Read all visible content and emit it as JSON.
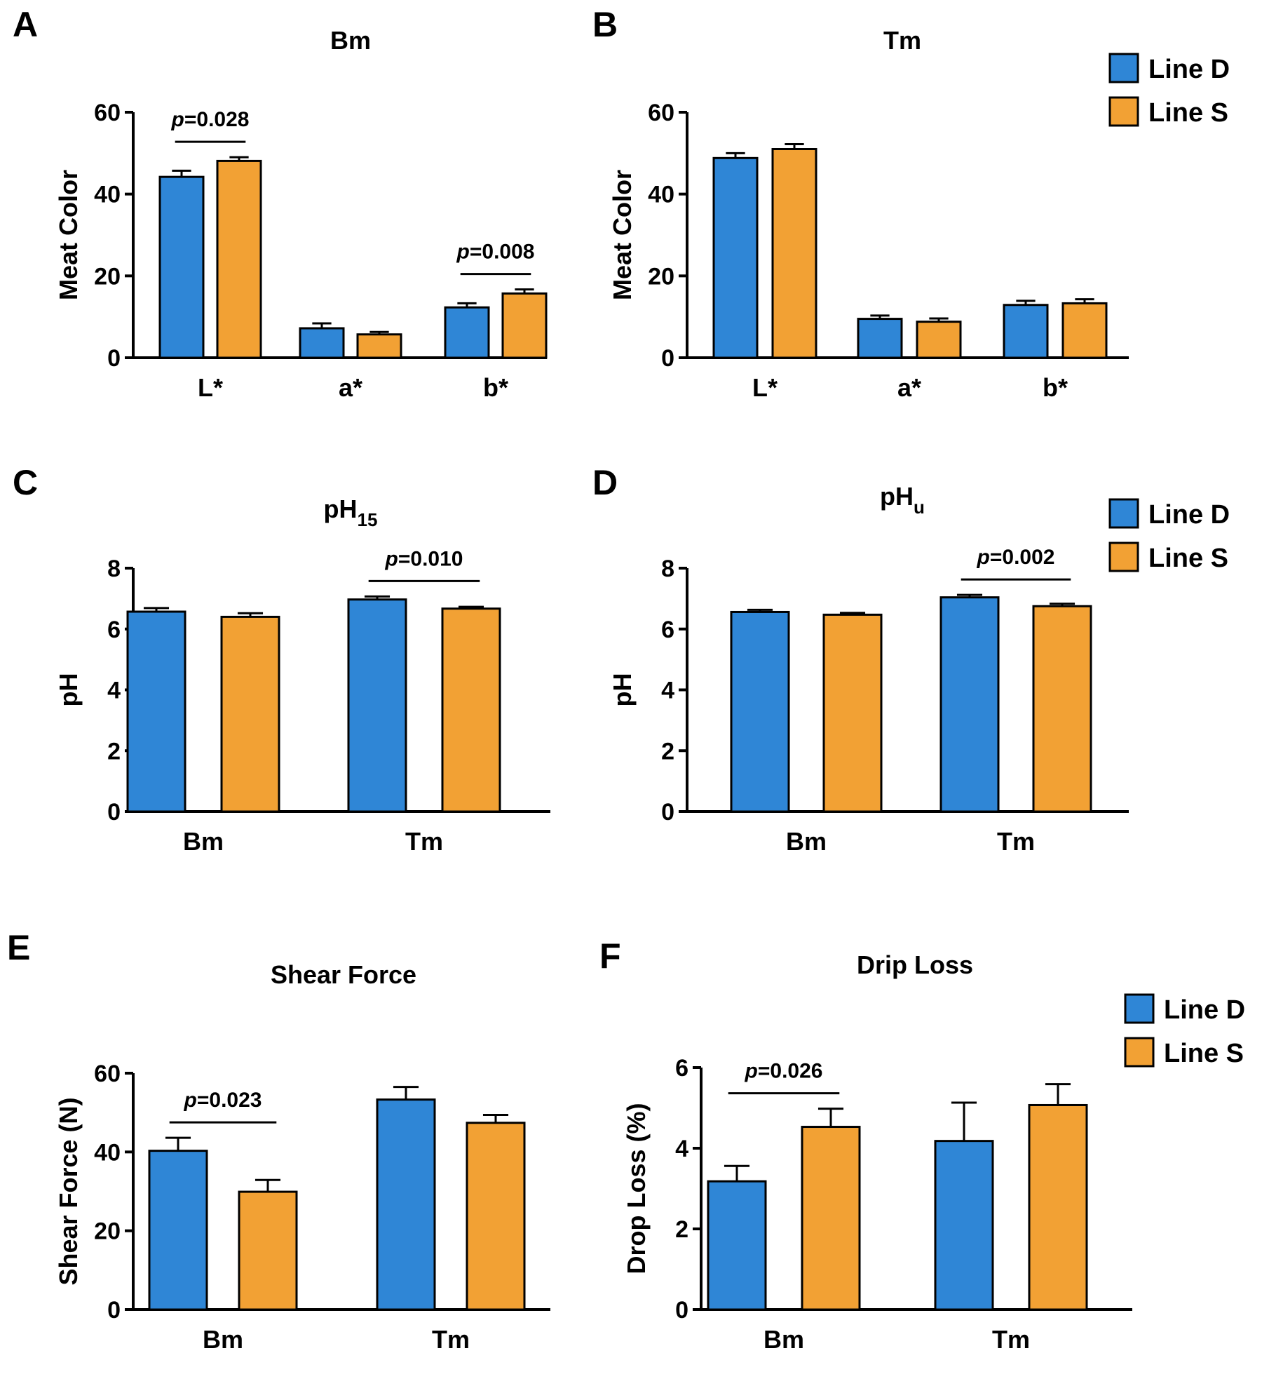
{
  "colors": {
    "line_d": "#2f86d6",
    "line_s": "#f2a134"
  },
  "legend": [
    {
      "label": "Line D",
      "color": "#2f86d6"
    },
    {
      "label": "Line S",
      "color": "#f2a134"
    }
  ],
  "chart_data": [
    {
      "panel": "A",
      "type": "bar",
      "title": "Bm",
      "ylabel": "Meat Color",
      "xlabel": "",
      "ylim": [
        0,
        60
      ],
      "yticks": [
        "0",
        "20",
        "40",
        "60"
      ],
      "categories": [
        "L*",
        "a*",
        "b*"
      ],
      "series": [
        {
          "name": "Line D",
          "values": [
            44.2,
            7.2,
            12.3
          ],
          "errors": [
            1.5,
            1.2,
            1.0
          ]
        },
        {
          "name": "Line S",
          "values": [
            48.1,
            5.7,
            15.7
          ],
          "errors": [
            0.9,
            0.6,
            1.0
          ]
        }
      ],
      "annotations": [
        {
          "p_prefix": "p",
          "p_value": "=0.028",
          "category_index": 0
        },
        {
          "p_prefix": "p",
          "p_value": "=0.008",
          "category_index": 2
        }
      ],
      "legend": false
    },
    {
      "panel": "B",
      "type": "bar",
      "title": "Tm",
      "ylabel": "Meat Color",
      "xlabel": "",
      "ylim": [
        0,
        60
      ],
      "yticks": [
        "0",
        "20",
        "40",
        "60"
      ],
      "categories": [
        "L*",
        "a*",
        "b*"
      ],
      "series": [
        {
          "name": "Line D",
          "values": [
            48.8,
            9.5,
            12.9
          ],
          "errors": [
            1.2,
            0.8,
            1.0
          ]
        },
        {
          "name": "Line S",
          "values": [
            51.0,
            8.8,
            13.3
          ],
          "errors": [
            1.2,
            0.8,
            1.0
          ]
        }
      ],
      "annotations": [],
      "legend": true
    },
    {
      "panel": "C",
      "type": "bar",
      "title": "pH",
      "title_sub": "15",
      "ylabel": "pH",
      "xlabel": "",
      "ylim": [
        0,
        8
      ],
      "yticks": [
        "0",
        "2",
        "4",
        "6",
        "8"
      ],
      "categories": [
        "Bm",
        "Tm"
      ],
      "series": [
        {
          "name": "Line D",
          "values": [
            6.57,
            6.97
          ],
          "errors": [
            0.12,
            0.1
          ]
        },
        {
          "name": "Line S",
          "values": [
            6.4,
            6.67
          ],
          "errors": [
            0.12,
            0.06
          ]
        }
      ],
      "annotations": [
        {
          "p_prefix": "p",
          "p_value": "=0.010",
          "category_index": 1
        }
      ],
      "legend": false
    },
    {
      "panel": "D",
      "type": "bar",
      "title": "pH",
      "title_sub": "u",
      "ylabel": "pH",
      "xlabel": "",
      "ylim": [
        0,
        8
      ],
      "yticks": [
        "0",
        "2",
        "4",
        "6",
        "8"
      ],
      "categories": [
        "Bm",
        "Tm"
      ],
      "series": [
        {
          "name": "Line D",
          "values": [
            6.56,
            7.04
          ],
          "errors": [
            0.07,
            0.08
          ]
        },
        {
          "name": "Line S",
          "values": [
            6.47,
            6.75
          ],
          "errors": [
            0.06,
            0.08
          ]
        }
      ],
      "annotations": [
        {
          "p_prefix": "p",
          "p_value": "=0.002",
          "category_index": 1
        }
      ],
      "legend": true
    },
    {
      "panel": "E",
      "type": "bar",
      "title": "Shear Force",
      "ylabel": "Shear Force (N)",
      "xlabel": "",
      "ylim": [
        0,
        60
      ],
      "yticks": [
        "0",
        "20",
        "40",
        "60"
      ],
      "categories": [
        "Bm",
        "Tm"
      ],
      "series": [
        {
          "name": "Line D",
          "values": [
            40.3,
            53.3
          ],
          "errors": [
            3.3,
            3.2
          ]
        },
        {
          "name": "Line S",
          "values": [
            29.9,
            47.4
          ],
          "errors": [
            3.0,
            2.0
          ]
        }
      ],
      "annotations": [
        {
          "p_prefix": "p",
          "p_value": "=0.023",
          "category_index": 0
        }
      ],
      "legend": false
    },
    {
      "panel": "F",
      "type": "bar",
      "title": "Drip Loss",
      "ylabel": "Drop Loss (%)",
      "xlabel": "",
      "ylim": [
        0,
        6
      ],
      "yticks": [
        "0",
        "2",
        "4",
        "6"
      ],
      "categories": [
        "Bm",
        "Tm"
      ],
      "series": [
        {
          "name": "Line D",
          "values": [
            3.18,
            4.18
          ],
          "errors": [
            0.38,
            0.95
          ]
        },
        {
          "name": "Line S",
          "values": [
            4.53,
            5.07
          ],
          "errors": [
            0.45,
            0.52
          ]
        }
      ],
      "annotations": [
        {
          "p_prefix": "p",
          "p_value": "=0.026",
          "category_index": 0
        }
      ],
      "legend": true
    }
  ]
}
